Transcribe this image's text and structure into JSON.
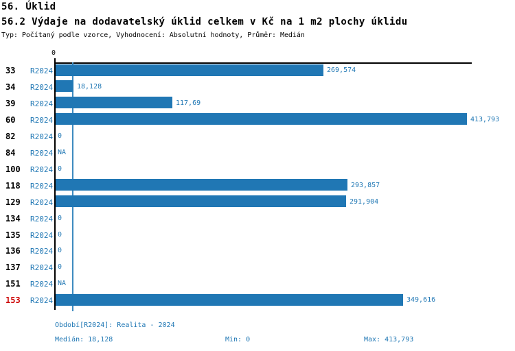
{
  "header": {
    "title": "56. Úklid",
    "subtitle": "56.2 Výdaje na dodavatelský úklid celkem v Kč na 1 m2 plochy úklidu",
    "meta": "Typ: Počítaný podle vzorce, Vyhodnocení: Absolutní hodnoty, Průměr: Medián"
  },
  "chart_data": {
    "type": "bar",
    "orientation": "horizontal",
    "title": "56.2 Výdaje na dodavatelský úklid celkem v Kč na 1 m2 plochy úklidu",
    "xlabel": "",
    "ylabel": "",
    "xlim": [
      0,
      413.793
    ],
    "axis_tick_label": "0",
    "grid": false,
    "median_value": 18.128,
    "series_label": "R2024",
    "categories": [
      "33",
      "34",
      "39",
      "60",
      "82",
      "84",
      "100",
      "118",
      "129",
      "134",
      "135",
      "136",
      "137",
      "151",
      "153"
    ],
    "rows": [
      {
        "id": "33",
        "period": "R2024",
        "value": 269.574,
        "label": "269,574"
      },
      {
        "id": "34",
        "period": "R2024",
        "value": 18.128,
        "label": "18,128"
      },
      {
        "id": "39",
        "period": "R2024",
        "value": 117.69,
        "label": "117,69"
      },
      {
        "id": "60",
        "period": "R2024",
        "value": 413.793,
        "label": "413,793"
      },
      {
        "id": "82",
        "period": "R2024",
        "value": 0,
        "label": "0"
      },
      {
        "id": "84",
        "period": "R2024",
        "value": null,
        "label": "NA"
      },
      {
        "id": "100",
        "period": "R2024",
        "value": 0,
        "label": "0"
      },
      {
        "id": "118",
        "period": "R2024",
        "value": 293.857,
        "label": "293,857"
      },
      {
        "id": "129",
        "period": "R2024",
        "value": 291.904,
        "label": "291,904"
      },
      {
        "id": "134",
        "period": "R2024",
        "value": 0,
        "label": "0"
      },
      {
        "id": "135",
        "period": "R2024",
        "value": 0,
        "label": "0"
      },
      {
        "id": "136",
        "period": "R2024",
        "value": 0,
        "label": "0"
      },
      {
        "id": "137",
        "period": "R2024",
        "value": 0,
        "label": "0"
      },
      {
        "id": "151",
        "period": "R2024",
        "value": null,
        "label": "NA"
      },
      {
        "id": "153",
        "period": "R2024",
        "value": 349.616,
        "label": "349,616",
        "highlight": true
      }
    ],
    "colors": {
      "bar": "#2077b4",
      "text_blue": "#1f77b4",
      "median_line": "#3d8abf",
      "highlight_red": "#cc0000",
      "axis_black": "#000000"
    }
  },
  "footer": {
    "period_line": "Období[R2024]: Realita - 2024",
    "median": "Medián: 18,128",
    "min": "Min: 0",
    "max": "Max: 413,793"
  }
}
